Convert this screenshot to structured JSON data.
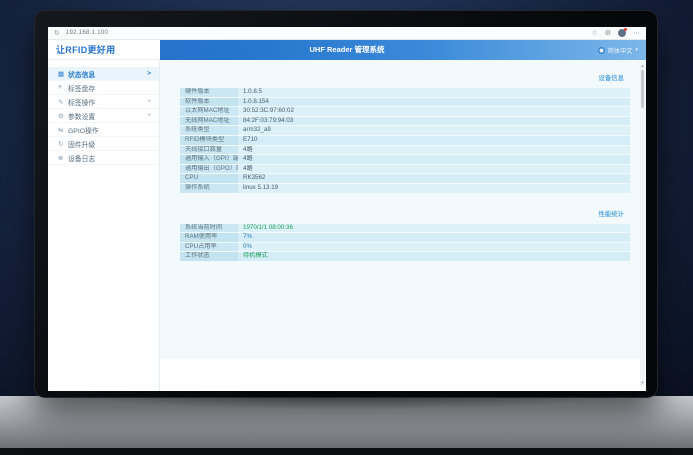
{
  "browser": {
    "url": "192.168.1.100",
    "reload_icon": "↻",
    "bookmark_icon": "☆",
    "extensions_icon": "⚙",
    "menu_icon": "⋯"
  },
  "header": {
    "logo": "让RFID更好用",
    "title": "UHF Reader 管理系统",
    "language": "简体中文",
    "language_caret": "▾"
  },
  "sidebar": {
    "items": [
      {
        "icon": "status-icon",
        "glyph": "▦",
        "label": "状态信息",
        "suffix": ">"
      },
      {
        "icon": "inventory-icon",
        "glyph": "≡",
        "label": "标签盘存",
        "suffix": ""
      },
      {
        "icon": "tag-ops-icon",
        "glyph": "✎",
        "label": "标签操作",
        "suffix": "+"
      },
      {
        "icon": "settings-icon",
        "glyph": "⚙",
        "label": "参数设置",
        "suffix": "+"
      },
      {
        "icon": "gpio-icon",
        "glyph": "⇆",
        "label": "GPIO操作",
        "suffix": ""
      },
      {
        "icon": "firmware-icon",
        "glyph": "↻",
        "label": "固件升级",
        "suffix": ""
      },
      {
        "icon": "log-icon",
        "glyph": "≣",
        "label": "设备日志",
        "suffix": ""
      }
    ]
  },
  "panels": {
    "device": {
      "link": "设备信息",
      "rows": [
        {
          "label": "硬件版本",
          "value": "1.0.8.5"
        },
        {
          "label": "软件版本",
          "value": "1.0.8.154"
        },
        {
          "label": "以太网MAC地址",
          "value": "30:52:3C:97:60:02"
        },
        {
          "label": "无线网MAC地址",
          "value": "84:2F:03:79:94:03"
        },
        {
          "label": "系统类型",
          "value": "arm32_a9"
        },
        {
          "label": "RFID模块类型",
          "value": "E710"
        },
        {
          "label": "天线接口数量",
          "value": "4路"
        },
        {
          "label": "通用输入（GPI）端口数量",
          "value": "4路"
        },
        {
          "label": "通用输出（GPO）端口数量",
          "value": "4路"
        },
        {
          "label": "CPU",
          "value": "RK3562"
        },
        {
          "label": "操作系统",
          "value": "linux 5.13.19"
        }
      ]
    },
    "performance": {
      "link": "性能统计",
      "rows": [
        {
          "label": "系统当前时间",
          "value": "1970/1/1 08:00:36"
        },
        {
          "label": "RAM使用率",
          "value": "7%"
        },
        {
          "label": "CPU占用率",
          "value": "0%"
        },
        {
          "label": "工作状态",
          "value": "待机模式"
        }
      ]
    }
  },
  "colors": {
    "accent": "#1a73c9",
    "header_gradient_start": "#1b6cc9",
    "header_gradient_end": "#7cb7ea",
    "green_value": "#1fa05a",
    "blue_value": "#2a7db5"
  }
}
